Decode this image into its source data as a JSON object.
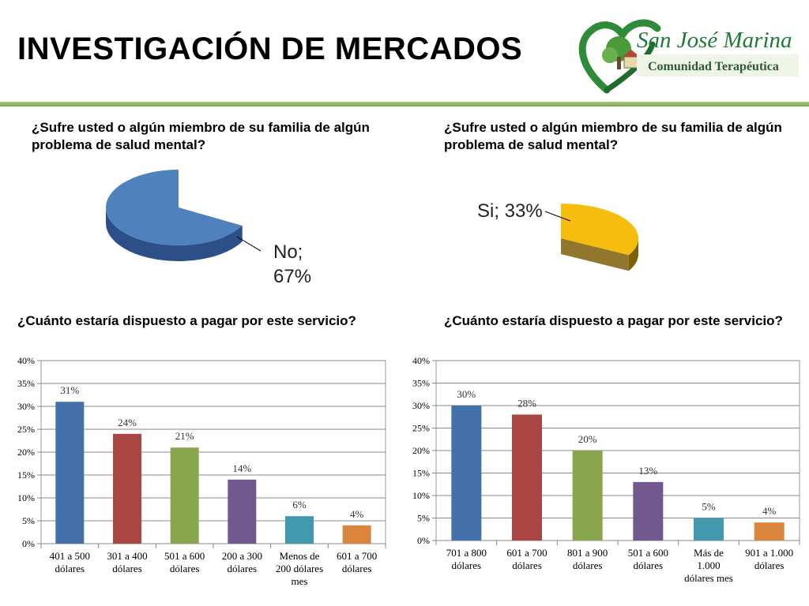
{
  "slide_title": "INVESTIGACIÓN DE MERCADOS",
  "logo": {
    "name": "San José Marina",
    "subtitle": "Comunidad Terapéutica",
    "colors": {
      "green": "#2e8b3a",
      "dark_green": "#1f6b2b",
      "brand_text": "#1e7a36"
    }
  },
  "colors": {
    "rule_green": "#8bb65d",
    "blue": "#4571ab",
    "red": "#aa4644",
    "green": "#89a54e",
    "purple": "#71588f",
    "teal": "#4298af",
    "orange": "#db843d",
    "pie_blue": "#4f81bd",
    "pie_yellow": "#f6bd0f"
  },
  "pies": [
    {
      "question": "¿Sufre usted o algún miembro de su familia de algún problema de salud mental?",
      "label_line1": "No;",
      "label_line2": "67%"
    },
    {
      "question": "¿Sufre usted o algún miembro de su familia de algún problema de salud mental?",
      "label_line1": "Si; 33%"
    }
  ],
  "bar_questions": [
    "¿Cuánto estaría dispuesto a pagar por este servicio?",
    "¿Cuánto estaría dispuesto a pagar por este servicio?"
  ],
  "chart_data": [
    {
      "type": "pie",
      "title": "",
      "slices": [
        {
          "label": "No",
          "value": 67
        },
        {
          "label": "Si",
          "value": 33
        }
      ],
      "shown_slice": "No",
      "style": "3d"
    },
    {
      "type": "pie",
      "title": "",
      "slices": [
        {
          "label": "No",
          "value": 67
        },
        {
          "label": "Si",
          "value": 33
        }
      ],
      "shown_slice": "Si",
      "style": "3d"
    },
    {
      "type": "bar",
      "title": "",
      "categories": [
        [
          "401 a 500",
          "dólares"
        ],
        [
          "301 a 400",
          "dólares"
        ],
        [
          "501 a 600",
          "dólares"
        ],
        [
          "200 a 300",
          "dólares"
        ],
        [
          "Menos de",
          "200 dólares",
          "mes"
        ],
        [
          "601 a 700",
          "dólares"
        ]
      ],
      "values": [
        31,
        24,
        21,
        14,
        6,
        4
      ],
      "value_labels": [
        "31%",
        "24%",
        "21%",
        "14%",
        "6%",
        "4%"
      ],
      "bar_colors": [
        "#4571ab",
        "#aa4644",
        "#89a54e",
        "#71588f",
        "#4298af",
        "#db843d"
      ],
      "yticks": [
        "0%",
        "5%",
        "10%",
        "15%",
        "20%",
        "25%",
        "30%",
        "35%",
        "40%"
      ],
      "ylim": [
        0,
        40
      ],
      "grid": true
    },
    {
      "type": "bar",
      "title": "",
      "categories": [
        [
          "701 a 800",
          "dólares"
        ],
        [
          "601 a 700",
          "dólares"
        ],
        [
          "801 a 900",
          "dólares"
        ],
        [
          "501 a 600",
          "dólares"
        ],
        [
          "Más de",
          "1.000",
          "dólares mes"
        ],
        [
          "901 a 1.000",
          "dólares"
        ]
      ],
      "values": [
        30,
        28,
        20,
        13,
        5,
        4
      ],
      "value_labels": [
        "30%",
        "28%",
        "20%",
        "13%",
        "5%",
        "4%"
      ],
      "bar_colors": [
        "#4571ab",
        "#aa4644",
        "#89a54e",
        "#71588f",
        "#4298af",
        "#db843d"
      ],
      "yticks": [
        "0%",
        "5%",
        "10%",
        "15%",
        "20%",
        "25%",
        "30%",
        "35%",
        "40%"
      ],
      "ylim": [
        0,
        40
      ],
      "grid": true
    }
  ]
}
